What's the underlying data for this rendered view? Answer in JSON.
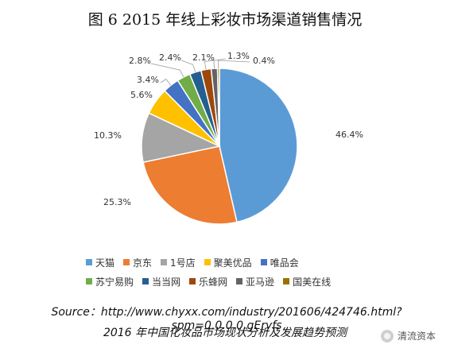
{
  "chart_data": {
    "type": "pie",
    "title": "图 6 2015 年线上彩妆市场渠道销售情况",
    "legend_position": "bottom",
    "categories": [
      "天猫",
      "京东",
      "1号店",
      "聚美优品",
      "唯品会",
      "苏宁易购",
      "当当网",
      "乐蜂网",
      "亚马逊",
      "国美在线"
    ],
    "values": [
      46.4,
      25.3,
      10.3,
      5.6,
      3.4,
      2.8,
      2.4,
      2.1,
      1.3,
      0.4
    ],
    "value_labels": [
      "46.4%",
      "25.3%",
      "10.3%",
      "5.6%",
      "3.4%",
      "2.8%",
      "2.4%",
      "2.1%",
      "1.3%",
      "0.4%"
    ],
    "colors": [
      "#5B9BD5",
      "#ED7D31",
      "#A5A5A5",
      "#FFC000",
      "#4472C4",
      "#70AD47",
      "#255E91",
      "#9E480E",
      "#636363",
      "#997300"
    ]
  },
  "source_text": "Source：http://www.chyxx.com/industry/201606/424746.html?spm=0.0.0.0.gEryfs",
  "report_title": "2016 年中国化妆品市场现状分析及发展趋势预测",
  "watermark": "清流资本"
}
